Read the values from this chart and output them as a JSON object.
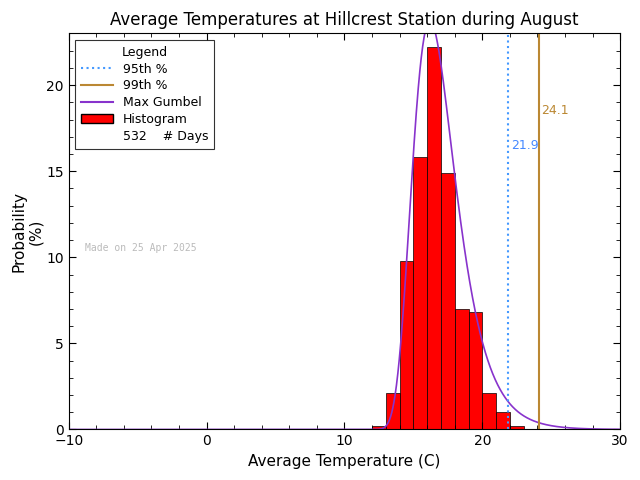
{
  "title": "Average Temperatures at Hillcrest Station during August",
  "xlabel": "Average Temperature (C)",
  "ylabel": "Probability\n(%)",
  "xlim": [
    -10,
    30
  ],
  "ylim": [
    0,
    23
  ],
  "xticks": [
    -10,
    0,
    10,
    20,
    30
  ],
  "yticks": [
    0,
    5,
    10,
    15,
    20
  ],
  "bar_edges": [
    12,
    13,
    14,
    15,
    16,
    17,
    18,
    19,
    20,
    21,
    22
  ],
  "bar_heights": [
    0.18,
    2.1,
    9.8,
    15.8,
    22.2,
    14.9,
    7.0,
    6.8,
    2.1,
    1.0,
    0.18
  ],
  "bar_color": "#ff0000",
  "bar_edge_color": "#000000",
  "gumbel_mu": 16.2,
  "gumbel_beta": 1.55,
  "gumbel_color": "#8833cc",
  "p95_val": 21.9,
  "p99_val": 24.1,
  "p95_color": "#4499ff",
  "p99_color": "#bb8833",
  "p95_label_color": "#4488ff",
  "p99_label_color": "#bb8833",
  "n_days": 532,
  "watermark": "Made on 25 Apr 2025",
  "watermark_color": "#bbbbbb",
  "legend_title": "Legend",
  "background_color": "#ffffff",
  "title_fontsize": 12,
  "axis_fontsize": 11,
  "tick_fontsize": 10,
  "legend_fontsize": 9,
  "watermark_fontsize": 7
}
